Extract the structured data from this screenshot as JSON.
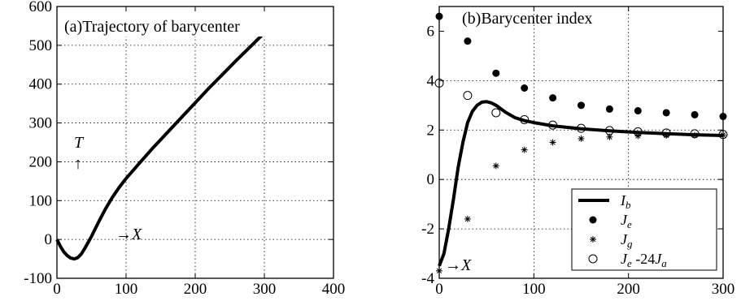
{
  "chart_data": [
    {
      "type": "line",
      "title": "(a)Trajectory of barycenter",
      "xlabel": "→X",
      "ylabel": "T ↑",
      "xlim": [
        0,
        400
      ],
      "ylim": [
        -100,
        600
      ],
      "xticks": [
        "0",
        "100",
        "200",
        "300",
        "400"
      ],
      "yticks": [
        "-100",
        "0",
        "100",
        "200",
        "300",
        "400",
        "500",
        "600"
      ],
      "grid": true,
      "series": [
        {
          "x": [
            0,
            5,
            10,
            15,
            20,
            25,
            30,
            35,
            40,
            50,
            60,
            70,
            80,
            90,
            100,
            120,
            140,
            160,
            180,
            200,
            220,
            240,
            260,
            280,
            300
          ],
          "y": [
            0,
            -18,
            -32,
            -42,
            -48,
            -50,
            -47,
            -38,
            -24,
            8,
            44,
            78,
            108,
            134,
            157,
            198,
            238,
            276,
            314,
            352,
            390,
            426,
            462,
            497,
            532
          ]
        }
      ]
    },
    {
      "type": "scatter",
      "title": "(b)Barycenter index",
      "xlabel": "→X",
      "xlim": [
        0,
        300
      ],
      "ylim": [
        -4,
        7
      ],
      "xticks": [
        "0",
        "100",
        "200",
        "300"
      ],
      "yticks": [
        "-4",
        "-2",
        "0",
        "2",
        "4",
        "6"
      ],
      "grid": true,
      "legend_position": "bottom-right",
      "series": [
        {
          "name": "I_b",
          "marker": "line",
          "x": [
            0,
            5,
            10,
            15,
            20,
            25,
            30,
            35,
            40,
            45,
            50,
            55,
            60,
            70,
            80,
            90,
            100,
            120,
            150,
            180,
            210,
            240,
            270,
            300
          ],
          "y": [
            -3.5,
            -3.0,
            -2.0,
            -0.8,
            0.5,
            1.5,
            2.3,
            2.75,
            3.0,
            3.13,
            3.15,
            3.1,
            3.0,
            2.72,
            2.5,
            2.38,
            2.3,
            2.17,
            2.05,
            1.97,
            1.9,
            1.85,
            1.81,
            1.78
          ]
        },
        {
          "name": "J_e",
          "marker": "filled-circle",
          "x": [
            0,
            30,
            60,
            90,
            120,
            150,
            180,
            210,
            240,
            270,
            300
          ],
          "y": [
            6.6,
            5.6,
            4.3,
            3.7,
            3.3,
            3.0,
            2.85,
            2.78,
            2.7,
            2.62,
            2.55
          ]
        },
        {
          "name": "J_g",
          "marker": "asterisk",
          "x": [
            0,
            30,
            60,
            90,
            120,
            150,
            180,
            210,
            240,
            270,
            300
          ],
          "y": [
            -3.7,
            -1.6,
            0.55,
            1.2,
            1.5,
            1.65,
            1.72,
            1.76,
            1.78,
            1.79,
            1.8
          ]
        },
        {
          "name": "J_e -24J_a",
          "marker": "open-circle",
          "x": [
            0,
            30,
            60,
            90,
            120,
            150,
            180,
            210,
            240,
            270,
            300
          ],
          "y": [
            3.9,
            3.4,
            2.7,
            2.42,
            2.2,
            2.07,
            1.98,
            1.93,
            1.88,
            1.85,
            1.82
          ]
        }
      ],
      "legend": [
        {
          "symbol": "I",
          "sub": "b"
        },
        {
          "symbol": "J",
          "sub": "e"
        },
        {
          "symbol": "J",
          "sub": "g"
        },
        {
          "symbol": "J",
          "sub": "e",
          "rest": " -24",
          "symbol2": "J",
          "sub2": "a"
        }
      ]
    }
  ]
}
